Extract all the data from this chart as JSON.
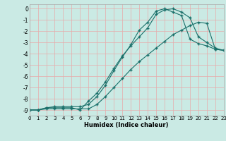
{
  "xlabel": "Humidex (Indice chaleur)",
  "background_color": "#caeae4",
  "grid_color": "#e8aaaa",
  "line_color": "#1a706a",
  "xlim": [
    0,
    23
  ],
  "ylim": [
    -9.5,
    0.4
  ],
  "yticks": [
    0,
    -1,
    -2,
    -3,
    -4,
    -5,
    -6,
    -7,
    -8,
    -9
  ],
  "xticks": [
    0,
    1,
    2,
    3,
    4,
    5,
    6,
    7,
    8,
    9,
    10,
    11,
    12,
    13,
    14,
    15,
    16,
    17,
    18,
    19,
    20,
    21,
    22,
    23
  ],
  "line1_x": [
    0,
    1,
    2,
    3,
    4,
    5,
    6,
    7,
    8,
    9,
    10,
    11,
    12,
    13,
    14,
    15,
    16,
    17,
    18,
    19,
    20,
    21,
    22,
    23
  ],
  "line1_y": [
    -9.0,
    -9.0,
    -8.8,
    -8.7,
    -8.7,
    -8.7,
    -8.7,
    -8.5,
    -7.8,
    -6.8,
    -5.5,
    -4.3,
    -3.2,
    -1.9,
    -1.2,
    -0.2,
    -0.0,
    -0.3,
    -0.6,
    -2.7,
    -3.1,
    -3.3,
    -3.6,
    -3.7
  ],
  "line2_x": [
    0,
    1,
    2,
    3,
    4,
    5,
    6,
    7,
    8,
    9,
    10,
    11,
    12,
    13,
    14,
    15,
    16,
    17,
    18,
    19,
    20,
    21,
    22,
    23
  ],
  "line2_y": [
    -9.0,
    -9.0,
    -8.8,
    -8.8,
    -8.8,
    -8.8,
    -9.0,
    -8.2,
    -7.5,
    -6.5,
    -5.3,
    -4.2,
    -3.3,
    -2.5,
    -1.7,
    -0.5,
    -0.1,
    0.0,
    -0.3,
    -0.8,
    -2.5,
    -3.0,
    -3.5,
    -3.7
  ],
  "line3_x": [
    0,
    1,
    2,
    3,
    4,
    5,
    6,
    7,
    8,
    9,
    10,
    11,
    12,
    13,
    14,
    15,
    16,
    17,
    18,
    19,
    20,
    21,
    22,
    23
  ],
  "line3_y": [
    -9.0,
    -9.0,
    -8.9,
    -8.9,
    -8.9,
    -8.9,
    -8.9,
    -8.9,
    -8.5,
    -7.8,
    -7.0,
    -6.2,
    -5.4,
    -4.7,
    -4.1,
    -3.5,
    -2.9,
    -2.3,
    -1.9,
    -1.5,
    -1.2,
    -1.3,
    -3.6,
    -3.7
  ]
}
